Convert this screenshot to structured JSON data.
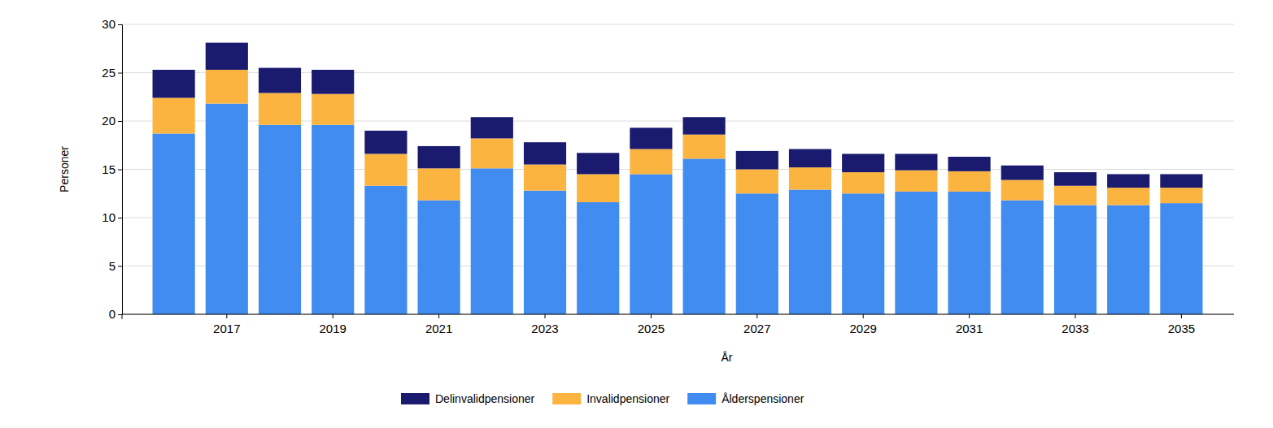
{
  "chart_data": {
    "type": "bar",
    "stacked": true,
    "grid": true,
    "legend": "bottom",
    "x_label": "År",
    "y_label": "Personer",
    "categories": [
      null,
      "2017",
      null,
      "2019",
      null,
      "2021",
      null,
      "2023",
      null,
      "2025",
      null,
      "2027",
      null,
      "2029",
      null,
      "2031",
      null,
      "2033",
      null,
      "2035"
    ],
    "series": [
      {
        "name": "Ålderspensioner",
        "color": "#418cf0",
        "values": [
          18.7,
          21.8,
          19.6,
          19.6,
          13.3,
          11.8,
          15.1,
          12.8,
          11.6,
          14.5,
          16.1,
          12.5,
          12.9,
          12.5,
          12.7,
          12.7,
          11.8,
          11.3,
          11.3,
          11.5
        ]
      },
      {
        "name": "Invalidpensioner",
        "color": "#fcb441",
        "values": [
          3.7,
          3.5,
          3.3,
          3.2,
          3.3,
          3.3,
          3.1,
          2.7,
          2.9,
          2.6,
          2.5,
          2.5,
          2.3,
          2.2,
          2.2,
          2.1,
          2.1,
          2.0,
          1.8,
          1.6
        ]
      },
      {
        "name": "Delinvalidpensioner",
        "color": "#1a1a6e",
        "values": [
          2.9,
          2.8,
          2.6,
          2.5,
          2.4,
          2.3,
          2.2,
          2.3,
          2.2,
          2.2,
          1.8,
          1.9,
          1.9,
          1.9,
          1.7,
          1.5,
          1.5,
          1.4,
          1.4,
          1.4
        ]
      }
    ],
    "ylim": [
      0,
      30
    ],
    "yticks": [
      0,
      5,
      10,
      15,
      20,
      25,
      30
    ]
  }
}
